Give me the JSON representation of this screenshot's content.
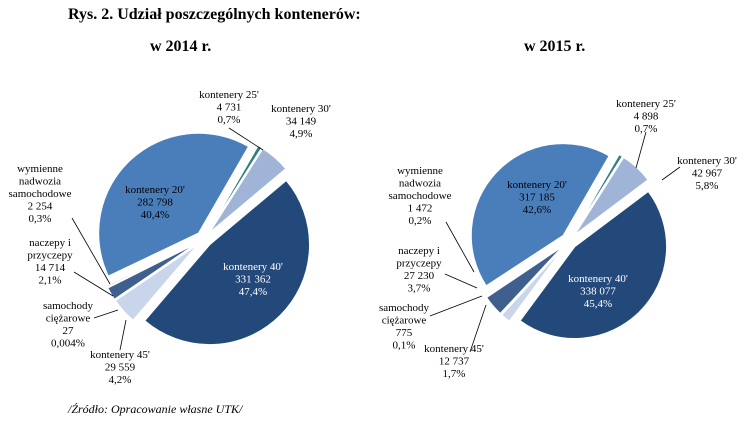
{
  "figure": {
    "title": "Rys. 2. Udział poszczególnych kontenerów:",
    "source": "/Źródło: Opracowanie własne UTK/"
  },
  "chart_data": [
    {
      "type": "pie",
      "title": "w 2014 r.",
      "unit": "",
      "slices": [
        {
          "name": "kontenery 25'",
          "value": 4731,
          "value_label": "4 731",
          "percent_label": "0,7%",
          "color": "#2e7c86"
        },
        {
          "name": "kontenery 30'",
          "value": 34149,
          "value_label": "34 149",
          "percent_label": "4,9%",
          "color": "#9fb4d6"
        },
        {
          "name": "kontenery 40'",
          "value": 331362,
          "value_label": "331 362",
          "percent_label": "47,4%",
          "color": "#23497b"
        },
        {
          "name": "kontenery 45'",
          "value": 29559,
          "value_label": "29 559",
          "percent_label": "4,2%",
          "color": "#c8d5ea"
        },
        {
          "name": "samochody ciężarowe",
          "value": 27,
          "value_label": "27",
          "percent_label": "0,004%",
          "color": "#7e8fa8"
        },
        {
          "name": "naczepy i przyczepy",
          "value": 14714,
          "value_label": "14 714",
          "percent_label": "2,1%",
          "color": "#3f5f8f"
        },
        {
          "name": "wymienne nadwozia samochodowe",
          "value": 2254,
          "value_label": "2 254",
          "percent_label": "0,3%",
          "color": "#dbe3f0"
        },
        {
          "name": "kontenery 20'",
          "value": 282798,
          "value_label": "282 798",
          "percent_label": "40,4%",
          "color": "#4a7ebb"
        }
      ]
    },
    {
      "type": "pie",
      "title": "w 2015 r.",
      "unit": "",
      "slices": [
        {
          "name": "kontenery 25'",
          "value": 4898,
          "value_label": "4 898",
          "percent_label": "0,7%",
          "color": "#2e7c86"
        },
        {
          "name": "kontenery 30'",
          "value": 42967,
          "value_label": "42 967",
          "percent_label": "5,8%",
          "color": "#9fb4d6"
        },
        {
          "name": "kontenery 40'",
          "value": 338077,
          "value_label": "338 077",
          "percent_label": "45,4%",
          "color": "#23497b"
        },
        {
          "name": "kontenery 45'",
          "value": 12737,
          "value_label": "12 737",
          "percent_label": "1,7%",
          "color": "#c8d5ea"
        },
        {
          "name": "samochody ciężarowe",
          "value": 775,
          "value_label": "775",
          "percent_label": "0,1%",
          "color": "#7e8fa8"
        },
        {
          "name": "naczepy i przyczepy",
          "value": 27230,
          "value_label": "27 230",
          "percent_label": "3,7%",
          "color": "#3f5f8f"
        },
        {
          "name": "wymienne nadwozia samochodowe",
          "value": 1472,
          "value_label": "1 472",
          "percent_label": "0,2%",
          "color": "#dbe3f0"
        },
        {
          "name": "kontenery 20'",
          "value": 317185,
          "value_label": "317 185",
          "percent_label": "42,6%",
          "color": "#4a7ebb"
        }
      ]
    }
  ]
}
